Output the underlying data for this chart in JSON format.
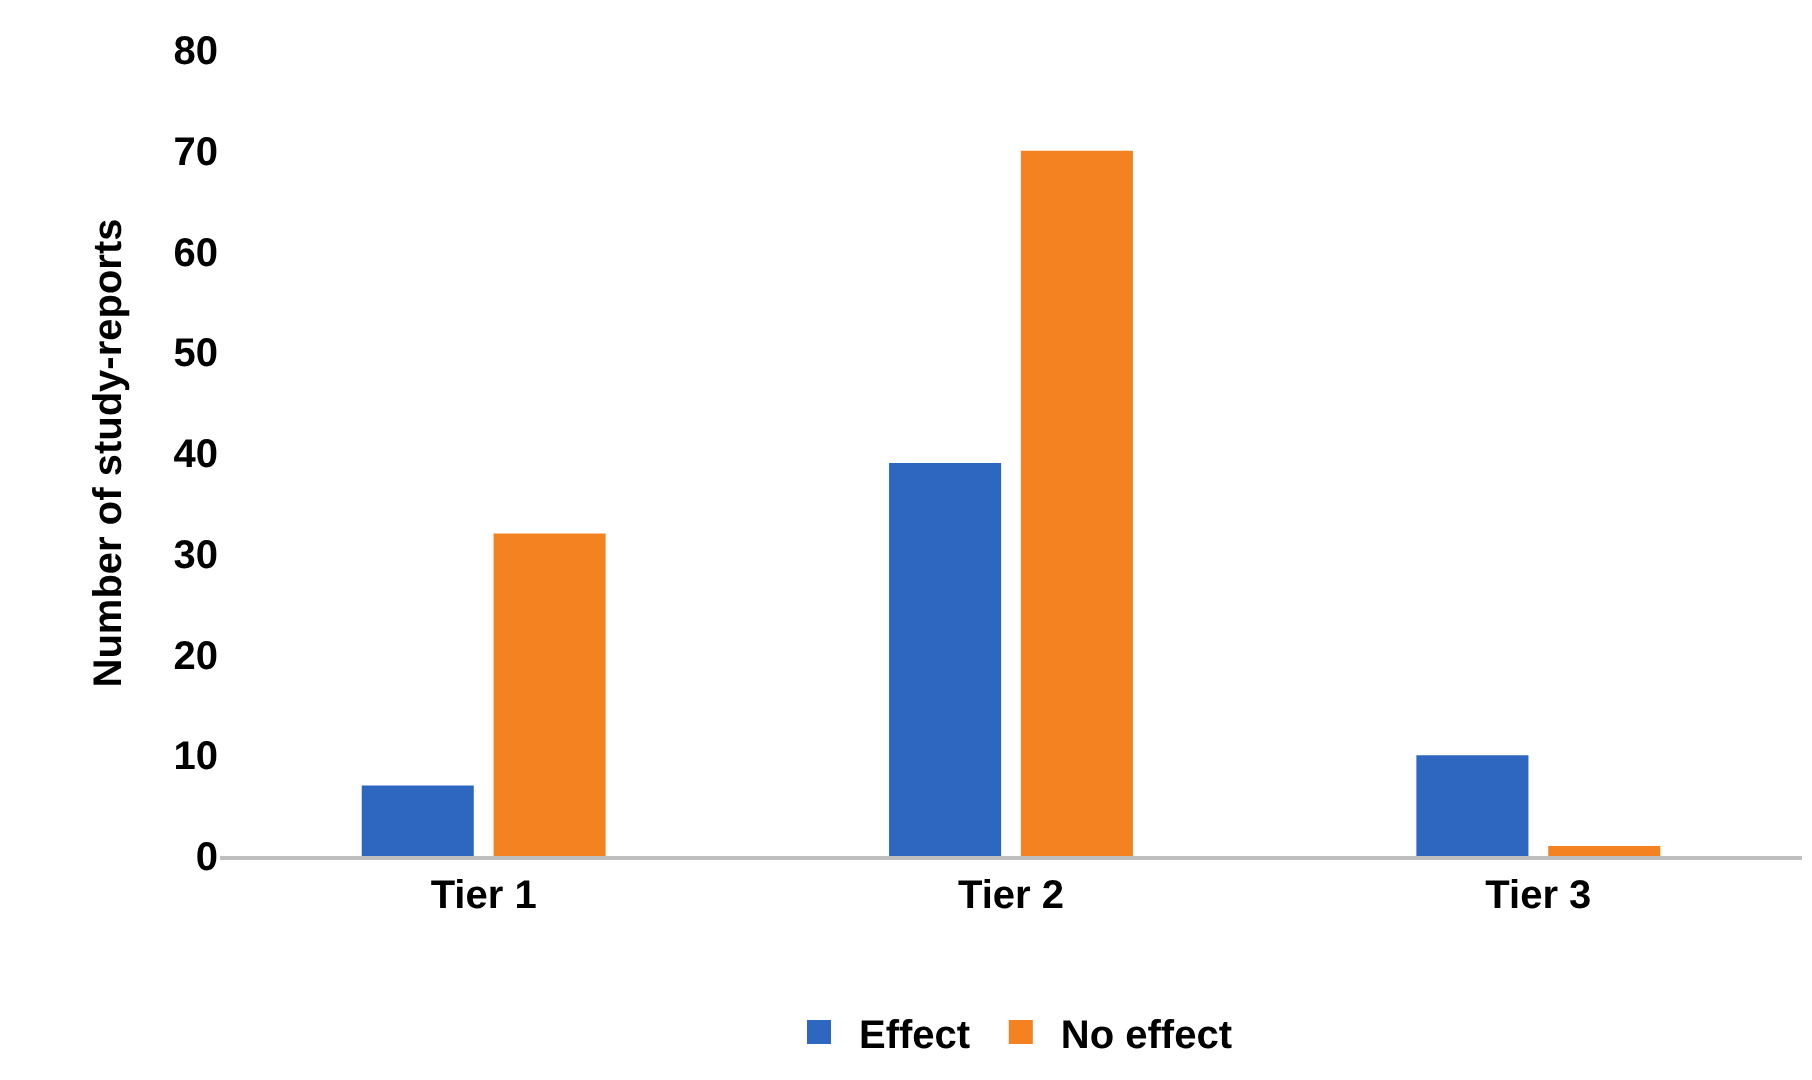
{
  "chart_data": {
    "type": "bar",
    "ylabel": "Number of study-reports",
    "categories": [
      "Tier 1",
      "Tier 2",
      "Tier 3"
    ],
    "series": [
      {
        "name": "Effect",
        "color": "#2e67c0",
        "values": [
          7,
          39,
          10
        ]
      },
      {
        "name": "No effect",
        "color": "#f58220",
        "values": [
          32,
          70,
          1
        ]
      }
    ],
    "ylim": [
      0,
      80
    ],
    "yticks": [
      0,
      10,
      20,
      30,
      40,
      50,
      60,
      70,
      80
    ],
    "grid": false,
    "legend": "bottom"
  }
}
